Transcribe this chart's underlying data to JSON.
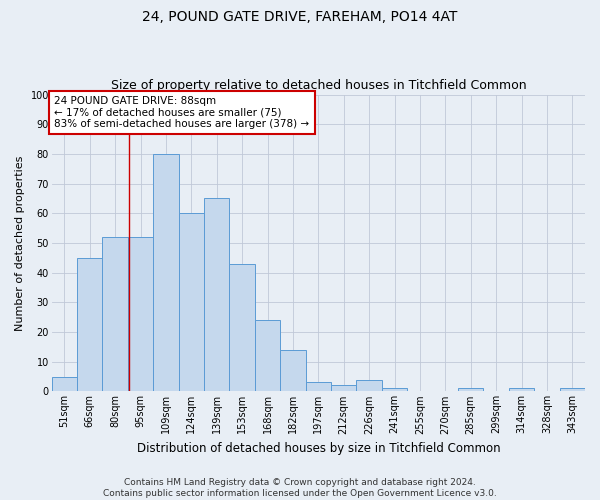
{
  "title1": "24, POUND GATE DRIVE, FAREHAM, PO14 4AT",
  "title2": "Size of property relative to detached houses in Titchfield Common",
  "xlabel": "Distribution of detached houses by size in Titchfield Common",
  "ylabel": "Number of detached properties",
  "footer1": "Contains HM Land Registry data © Crown copyright and database right 2024.",
  "footer2": "Contains public sector information licensed under the Open Government Licence v3.0.",
  "categories": [
    "51sqm",
    "66sqm",
    "80sqm",
    "95sqm",
    "109sqm",
    "124sqm",
    "139sqm",
    "153sqm",
    "168sqm",
    "182sqm",
    "197sqm",
    "212sqm",
    "226sqm",
    "241sqm",
    "255sqm",
    "270sqm",
    "285sqm",
    "299sqm",
    "314sqm",
    "328sqm",
    "343sqm"
  ],
  "values": [
    5,
    45,
    52,
    52,
    80,
    60,
    65,
    43,
    24,
    14,
    3,
    2,
    4,
    1,
    0,
    0,
    1,
    0,
    1,
    0,
    1
  ],
  "bar_color": "#c5d8ed",
  "bar_edge_color": "#5b9bd5",
  "annotation_text_line1": "24 POUND GATE DRIVE: 88sqm",
  "annotation_text_line2": "← 17% of detached houses are smaller (75)",
  "annotation_text_line3": "83% of semi-detached houses are larger (378) →",
  "annotation_box_color": "#ffffff",
  "annotation_box_edge_color": "#cc0000",
  "ylim": [
    0,
    100
  ],
  "yticks": [
    0,
    10,
    20,
    30,
    40,
    50,
    60,
    70,
    80,
    90,
    100
  ],
  "grid_color": "#c0c8d8",
  "background_color": "#e8eef5",
  "red_line_x": 2.53,
  "title1_fontsize": 10,
  "title2_fontsize": 9,
  "ylabel_fontsize": 8,
  "xlabel_fontsize": 8.5,
  "tick_fontsize": 7,
  "footer_fontsize": 6.5,
  "ann_fontsize": 7.5
}
